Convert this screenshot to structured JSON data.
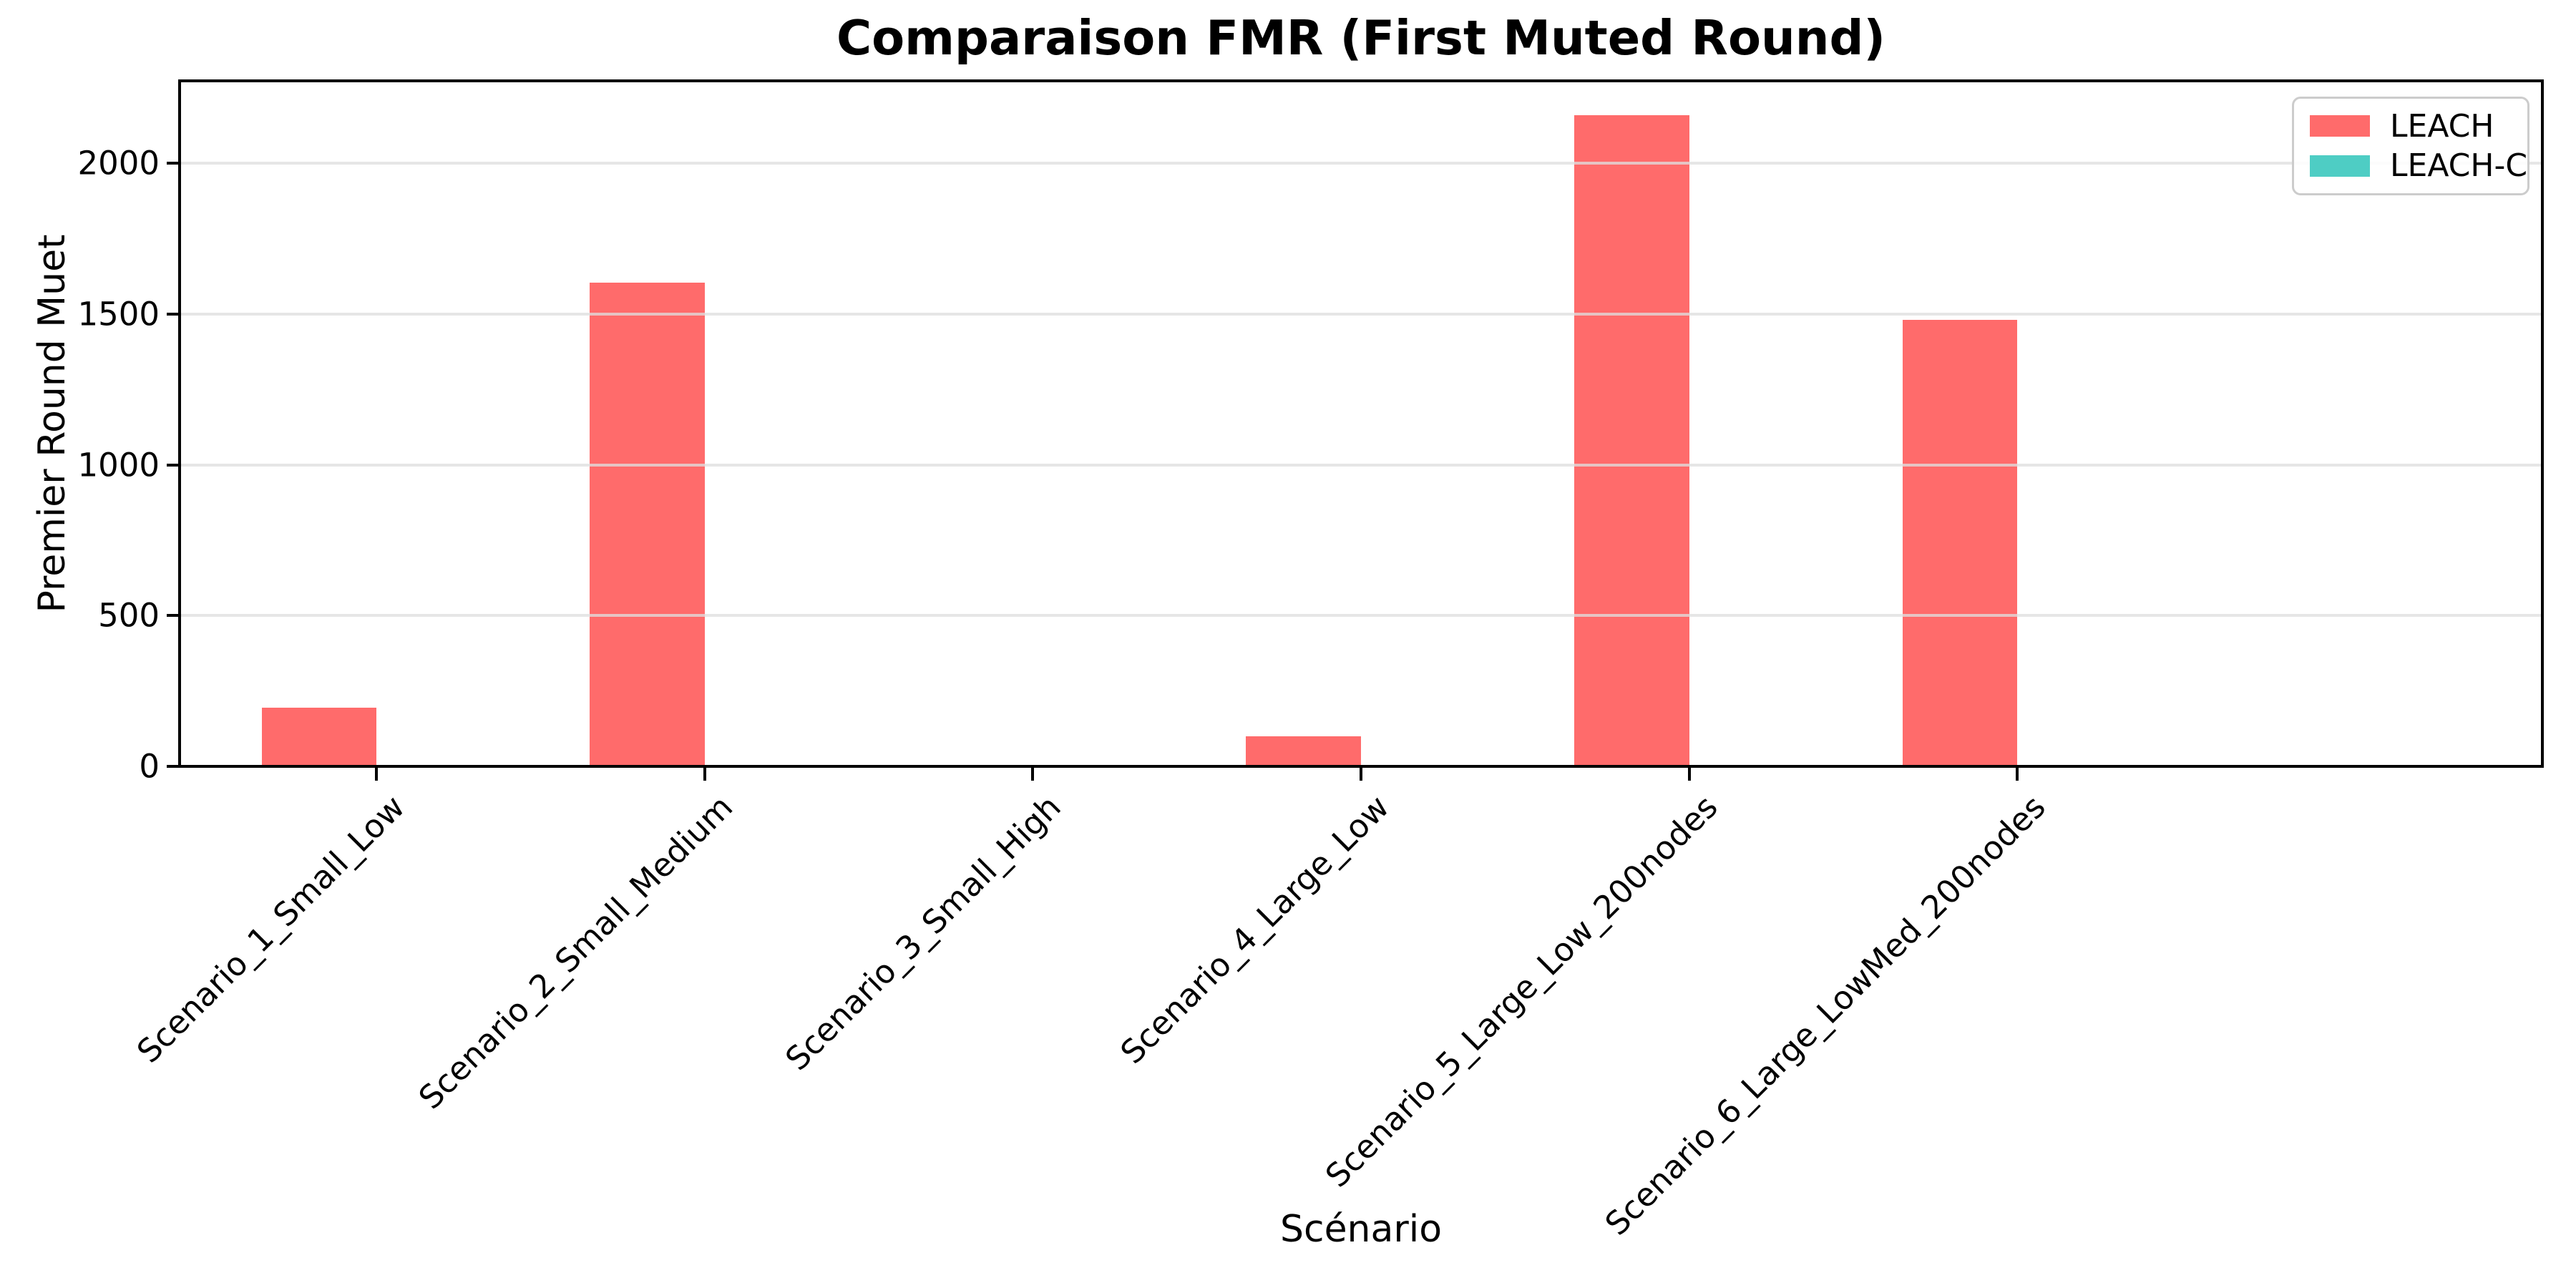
{
  "chart_data": {
    "type": "bar",
    "title": "Comparaison FMR (First Muted Round)",
    "xlabel": "Scénario",
    "ylabel": "Premier Round Muet",
    "categories": [
      "Scenario_1_Small_Low",
      "Scenario_2_Small_Medium",
      "Scenario_3_Small_High",
      "Scenario_4_Large_Low",
      "Scenario_5_Large_Low_200nodes",
      "Scenario_6_Large_LowMed_200nodes"
    ],
    "series": [
      {
        "name": "LEACH",
        "color": "#FF6B6B",
        "values": [
          195,
          1605,
          0,
          100,
          2160,
          1480
        ]
      },
      {
        "name": "LEACH-C",
        "color": "#4ECDC4",
        "values": [
          0,
          0,
          0,
          0,
          0,
          0
        ]
      }
    ],
    "yticks": [
      0,
      500,
      1000,
      1500,
      2000
    ],
    "ylim": [
      0,
      2273
    ],
    "grid": "horizontal",
    "grid_color": "#dedede",
    "axis_color": "#000000",
    "legend_position": "upper right",
    "xtick_label_rotation": 45
  }
}
